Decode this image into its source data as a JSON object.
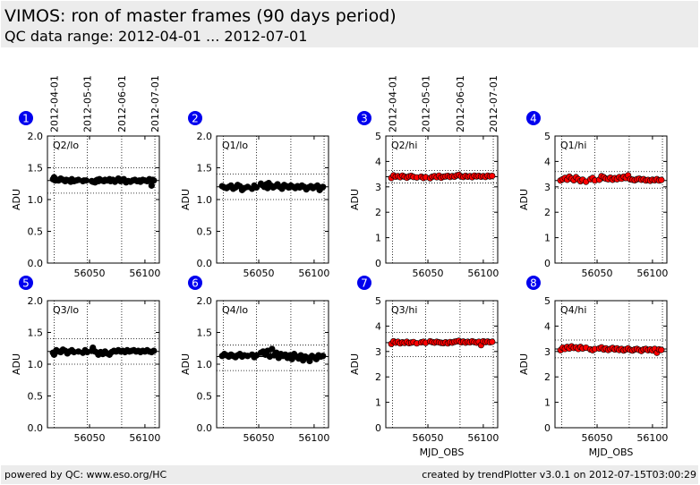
{
  "header": {
    "title": "VIMOS: ron of master frames (90 days period)",
    "subtitle": "QC data range: 2012-04-01 ... 2012-07-01"
  },
  "footer": {
    "left": "powered by QC: www.eso.org/HC",
    "right": "created by trendPlotter v3.0.1 on 2012-07-15T03:00:29"
  },
  "colors": {
    "lo_series": "#000000",
    "hi_series": "#ff0000",
    "badge": "#0000ee"
  },
  "chart_data": [
    {
      "type": "scatter",
      "panel": "1",
      "label": "Q2/lo",
      "ylabel": "ADU",
      "xlabel": "",
      "ylim": [
        0.0,
        2.0
      ],
      "yticks": [
        "0.0",
        "0.5",
        "1.0",
        "1.5",
        "2.0"
      ],
      "xlim": [
        56012,
        56113
      ],
      "xticks": [
        56050,
        56100
      ],
      "xticklabels": [
        "56050",
        "56100"
      ],
      "date_ticks": [
        {
          "x": 56018,
          "label": "2012-04-01"
        },
        {
          "x": 56048,
          "label": "2012-05-01"
        },
        {
          "x": 56079,
          "label": "2012-06-01"
        },
        {
          "x": 56109,
          "label": "2012-07-01"
        }
      ],
      "ref_mean": 1.3,
      "ref_lines": [
        1.1,
        1.5
      ],
      "x": [
        56017,
        56018,
        56019,
        56021,
        56022,
        56024,
        56026,
        56028,
        56029,
        56031,
        56033,
        56034,
        56036,
        56038,
        56040,
        56044,
        56045,
        56047,
        56052,
        56053,
        56055,
        56056,
        56057,
        56058,
        56059,
        56061,
        56063,
        56064,
        56066,
        56068,
        56069,
        56071,
        56073,
        56074,
        56076,
        56077,
        56078,
        56080,
        56081,
        56083,
        56085,
        56087,
        56089,
        56091,
        56093,
        56095,
        56096,
        56098,
        56100,
        56102,
        56104,
        56106,
        56107,
        56108
      ],
      "y": [
        1.32,
        1.35,
        1.3,
        1.31,
        1.3,
        1.33,
        1.31,
        1.29,
        1.31,
        1.3,
        1.28,
        1.32,
        1.29,
        1.3,
        1.31,
        1.29,
        1.3,
        1.3,
        1.29,
        1.28,
        1.27,
        1.3,
        1.31,
        1.29,
        1.32,
        1.3,
        1.29,
        1.31,
        1.3,
        1.32,
        1.29,
        1.31,
        1.28,
        1.3,
        1.33,
        1.31,
        1.29,
        1.3,
        1.32,
        1.27,
        1.29,
        1.28,
        1.3,
        1.31,
        1.29,
        1.3,
        1.28,
        1.31,
        1.3,
        1.29,
        1.32,
        1.22,
        1.31,
        1.3
      ]
    },
    {
      "type": "scatter",
      "panel": "2",
      "label": "Q1/lo",
      "ylabel": "ADU",
      "xlabel": "",
      "ylim": [
        0.0,
        2.0
      ],
      "yticks": [
        "0.0",
        "0.5",
        "1.0",
        "1.5",
        "2.0"
      ],
      "xlim": [
        56012,
        56113
      ],
      "xticks": [
        56050,
        56100
      ],
      "xticklabels": [
        "56050",
        "56100"
      ],
      "date_ticks": [],
      "ref_mean": 1.2,
      "ref_lines": [
        1.0,
        1.4
      ],
      "x": [
        56017,
        56019,
        56021,
        56023,
        56025,
        56027,
        56029,
        56031,
        56033,
        56035,
        56037,
        56040,
        56044,
        56046,
        56048,
        56052,
        56053,
        56055,
        56057,
        56058,
        56059,
        56061,
        56063,
        56065,
        56067,
        56069,
        56071,
        56073,
        56075,
        56077,
        56079,
        56081,
        56083,
        56085,
        56087,
        56089,
        56091,
        56093,
        56095,
        56097,
        56099,
        56101,
        56103,
        56105,
        56107,
        56108
      ],
      "y": [
        1.21,
        1.19,
        1.18,
        1.2,
        1.22,
        1.17,
        1.19,
        1.23,
        1.21,
        1.15,
        1.18,
        1.2,
        1.17,
        1.22,
        1.19,
        1.25,
        1.23,
        1.2,
        1.24,
        1.18,
        1.26,
        1.22,
        1.19,
        1.21,
        1.24,
        1.2,
        1.17,
        1.23,
        1.21,
        1.19,
        1.22,
        1.2,
        1.18,
        1.21,
        1.19,
        1.22,
        1.2,
        1.16,
        1.19,
        1.21,
        1.18,
        1.2,
        1.22,
        1.15,
        1.19,
        1.2
      ]
    },
    {
      "type": "scatter",
      "panel": "3",
      "label": "Q2/hi",
      "ylabel": "ADU",
      "xlabel": "",
      "ylim": [
        0,
        5
      ],
      "yticks": [
        "0",
        "1",
        "2",
        "3",
        "4",
        "5"
      ],
      "xlim": [
        56012,
        56113
      ],
      "xticks": [
        56050,
        56100
      ],
      "xticklabels": [
        "56050",
        "56100"
      ],
      "date_ticks": [
        {
          "x": 56018,
          "label": "2012-04-01"
        },
        {
          "x": 56048,
          "label": "2012-05-01"
        },
        {
          "x": 56079,
          "label": "2012-06-01"
        },
        {
          "x": 56109,
          "label": "2012-07-01"
        }
      ],
      "ref_mean": 3.4,
      "ref_lines": [
        3.15,
        3.65
      ],
      "x": [
        56017,
        56019,
        56021,
        56023,
        56025,
        56027,
        56029,
        56031,
        56033,
        56035,
        56037,
        56040,
        56044,
        56046,
        56048,
        56052,
        56054,
        56056,
        56058,
        56060,
        56062,
        56064,
        56066,
        56068,
        56070,
        56072,
        56074,
        56076,
        56078,
        56080,
        56082,
        56084,
        56086,
        56088,
        56090,
        56092,
        56094,
        56096,
        56098,
        56100,
        56102,
        56104,
        56106,
        56108
      ],
      "y": [
        3.35,
        3.45,
        3.4,
        3.42,
        3.38,
        3.44,
        3.4,
        3.36,
        3.41,
        3.43,
        3.39,
        3.37,
        3.4,
        3.35,
        3.38,
        3.34,
        3.4,
        3.42,
        3.38,
        3.44,
        3.36,
        3.4,
        3.41,
        3.43,
        3.39,
        3.42,
        3.4,
        3.45,
        3.47,
        3.41,
        3.39,
        3.43,
        3.4,
        3.42,
        3.38,
        3.44,
        3.41,
        3.43,
        3.4,
        3.42,
        3.39,
        3.44,
        3.41,
        3.43
      ]
    },
    {
      "type": "scatter",
      "panel": "4",
      "label": "Q1/hi",
      "ylabel": "ADU",
      "xlabel": "",
      "ylim": [
        0,
        5
      ],
      "yticks": [
        "0",
        "1",
        "2",
        "3",
        "4",
        "5"
      ],
      "xlim": [
        56012,
        56113
      ],
      "xticks": [
        56050,
        56100
      ],
      "xticklabels": [
        "56050",
        "56100"
      ],
      "date_ticks": [],
      "ref_mean": 3.25,
      "ref_lines": [
        2.95,
        3.6
      ],
      "x": [
        56017,
        56019,
        56021,
        56023,
        56025,
        56027,
        56029,
        56031,
        56033,
        56035,
        56037,
        56040,
        56044,
        56046,
        56048,
        56052,
        56054,
        56056,
        56058,
        56060,
        56062,
        56064,
        56066,
        56068,
        56070,
        56072,
        56074,
        56076,
        56078,
        56080,
        56082,
        56084,
        56086,
        56088,
        56090,
        56092,
        56094,
        56096,
        56098,
        56100,
        56102,
        56104,
        56106,
        56108
      ],
      "y": [
        3.25,
        3.3,
        3.35,
        3.28,
        3.4,
        3.32,
        3.26,
        3.38,
        3.3,
        3.22,
        3.28,
        3.2,
        3.3,
        3.35,
        3.25,
        3.28,
        3.42,
        3.38,
        3.32,
        3.3,
        3.36,
        3.28,
        3.34,
        3.3,
        3.38,
        3.32,
        3.4,
        3.35,
        3.45,
        3.3,
        3.28,
        3.26,
        3.3,
        3.32,
        3.28,
        3.3,
        3.25,
        3.27,
        3.24,
        3.28,
        3.26,
        3.3,
        3.25,
        3.27
      ]
    },
    {
      "type": "scatter",
      "panel": "5",
      "label": "Q3/lo",
      "ylabel": "ADU",
      "xlabel": "",
      "ylim": [
        0.0,
        2.0
      ],
      "yticks": [
        "0.0",
        "0.5",
        "1.0",
        "1.5",
        "2.0"
      ],
      "xlim": [
        56012,
        56113
      ],
      "xticks": [
        56050,
        56100
      ],
      "xticklabels": [
        "56050",
        "56100"
      ],
      "date_ticks": [],
      "ref_mean": 1.2,
      "ref_lines": [
        1.0,
        1.4
      ],
      "x": [
        56017,
        56018,
        56020,
        56022,
        56024,
        56026,
        56028,
        56030,
        56032,
        56034,
        56036,
        56040,
        56044,
        56046,
        56048,
        56052,
        56053,
        56055,
        56057,
        56058,
        56060,
        56062,
        56064,
        56066,
        56068,
        56070,
        56072,
        56074,
        56076,
        56078,
        56080,
        56082,
        56084,
        56086,
        56088,
        56090,
        56092,
        56094,
        56096,
        56098,
        56100,
        56102,
        56104,
        56106,
        56108
      ],
      "y": [
        1.18,
        1.15,
        1.22,
        1.2,
        1.19,
        1.23,
        1.21,
        1.17,
        1.2,
        1.22,
        1.19,
        1.2,
        1.18,
        1.22,
        1.19,
        1.21,
        1.26,
        1.2,
        1.18,
        1.15,
        1.19,
        1.16,
        1.2,
        1.17,
        1.15,
        1.19,
        1.21,
        1.2,
        1.22,
        1.2,
        1.21,
        1.19,
        1.22,
        1.2,
        1.21,
        1.22,
        1.2,
        1.21,
        1.19,
        1.21,
        1.2,
        1.22,
        1.2,
        1.19,
        1.21
      ]
    },
    {
      "type": "scatter",
      "panel": "6",
      "label": "Q4/lo",
      "ylabel": "ADU",
      "xlabel": "",
      "ylim": [
        0.0,
        2.0
      ],
      "yticks": [
        "0.0",
        "0.5",
        "1.0",
        "1.5",
        "2.0"
      ],
      "xlim": [
        56012,
        56113
      ],
      "xticks": [
        56050,
        56100
      ],
      "xticklabels": [
        "56050",
        "56100"
      ],
      "date_ticks": [],
      "ref_mean": 1.12,
      "ref_lines": [
        0.9,
        1.3
      ],
      "x": [
        56017,
        56019,
        56021,
        56023,
        56025,
        56027,
        56029,
        56031,
        56033,
        56035,
        56037,
        56040,
        56044,
        56046,
        56048,
        56052,
        56054,
        56056,
        56058,
        56060,
        56062,
        56064,
        56066,
        56068,
        56070,
        56072,
        56074,
        56076,
        56078,
        56080,
        56082,
        56084,
        56086,
        56088,
        56090,
        56092,
        56094,
        56096,
        56098,
        56100,
        56102,
        56104,
        56106,
        56108
      ],
      "y": [
        1.13,
        1.16,
        1.14,
        1.12,
        1.15,
        1.13,
        1.11,
        1.14,
        1.16,
        1.12,
        1.14,
        1.13,
        1.15,
        1.11,
        1.14,
        1.18,
        1.2,
        1.15,
        1.21,
        1.12,
        1.24,
        1.14,
        1.18,
        1.1,
        1.16,
        1.13,
        1.15,
        1.1,
        1.14,
        1.08,
        1.16,
        1.12,
        1.09,
        1.14,
        1.06,
        1.12,
        1.1,
        1.05,
        1.13,
        1.11,
        1.08,
        1.14,
        1.12,
        1.13
      ]
    },
    {
      "type": "scatter",
      "panel": "7",
      "label": "Q3/hi",
      "ylabel": "ADU",
      "xlabel": "MJD_OBS",
      "ylim": [
        0,
        5
      ],
      "yticks": [
        "0",
        "1",
        "2",
        "3",
        "4",
        "5"
      ],
      "xlim": [
        56012,
        56113
      ],
      "xticks": [
        56050,
        56100
      ],
      "xticklabels": [
        "56050",
        "56100"
      ],
      "date_ticks": [],
      "ref_mean": 3.35,
      "ref_lines": [
        2.8,
        3.75
      ],
      "x": [
        56017,
        56019,
        56021,
        56023,
        56025,
        56027,
        56029,
        56031,
        56033,
        56035,
        56037,
        56040,
        56044,
        56046,
        56048,
        56052,
        56054,
        56056,
        56058,
        56060,
        56062,
        56064,
        56066,
        56068,
        56070,
        56072,
        56074,
        56076,
        56078,
        56080,
        56082,
        56084,
        56086,
        56088,
        56090,
        56092,
        56094,
        56096,
        56098,
        56100,
        56102,
        56104,
        56106,
        56108
      ],
      "y": [
        3.3,
        3.4,
        3.35,
        3.38,
        3.32,
        3.36,
        3.34,
        3.38,
        3.33,
        3.35,
        3.37,
        3.32,
        3.36,
        3.38,
        3.34,
        3.4,
        3.37,
        3.35,
        3.38,
        3.36,
        3.34,
        3.33,
        3.36,
        3.32,
        3.37,
        3.35,
        3.38,
        3.4,
        3.42,
        3.36,
        3.39,
        3.35,
        3.38,
        3.36,
        3.4,
        3.37,
        3.35,
        3.38,
        3.25,
        3.4,
        3.37,
        3.39,
        3.36,
        3.38
      ]
    },
    {
      "type": "scatter",
      "panel": "8",
      "label": "Q4/hi",
      "ylabel": "ADU",
      "xlabel": "MJD_OBS",
      "ylim": [
        0,
        5
      ],
      "yticks": [
        "0",
        "1",
        "2",
        "3",
        "4",
        "5"
      ],
      "xlim": [
        56012,
        56113
      ],
      "xticks": [
        56050,
        56100
      ],
      "xticklabels": [
        "56050",
        "56100"
      ],
      "date_ticks": [],
      "ref_mean": 3.1,
      "ref_lines": [
        2.75,
        3.45
      ],
      "x": [
        56017,
        56019,
        56021,
        56023,
        56025,
        56027,
        56029,
        56031,
        56033,
        56035,
        56037,
        56040,
        56044,
        56046,
        56048,
        56052,
        56054,
        56056,
        56058,
        56060,
        56062,
        56064,
        56066,
        56068,
        56070,
        56072,
        56074,
        56076,
        56078,
        56080,
        56082,
        56084,
        56086,
        56088,
        56090,
        56092,
        56094,
        56096,
        56098,
        56100,
        56102,
        56104,
        56106,
        56108
      ],
      "y": [
        3.05,
        3.15,
        3.1,
        3.18,
        3.12,
        3.2,
        3.14,
        3.16,
        3.1,
        3.18,
        3.12,
        3.15,
        3.08,
        3.05,
        3.1,
        3.12,
        3.16,
        3.08,
        3.12,
        3.06,
        3.1,
        3.14,
        3.08,
        3.12,
        3.06,
        3.1,
        3.04,
        3.08,
        3.12,
        3.06,
        3.04,
        3.08,
        3.1,
        3.06,
        3.02,
        3.08,
        3.1,
        3.05,
        3.08,
        3.04,
        3.1,
        2.95,
        3.08,
        3.06
      ]
    }
  ]
}
